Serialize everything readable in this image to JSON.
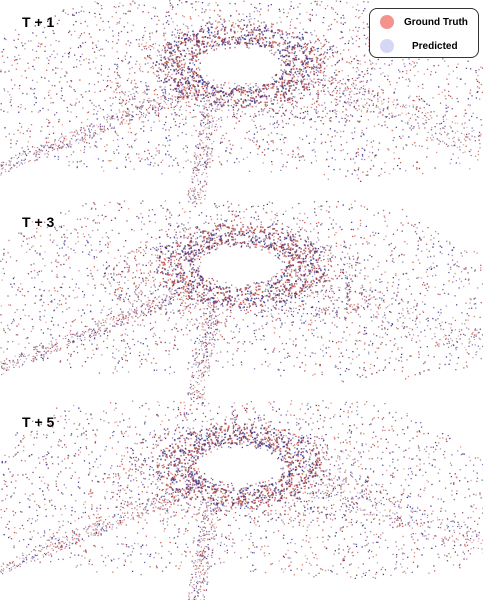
{
  "panels": [
    {
      "label": "T + 1"
    },
    {
      "label": "T + 3"
    },
    {
      "label": "T + 5"
    }
  ],
  "legend": {
    "items": [
      {
        "label": "Ground Truth",
        "color": "#f4938c"
      },
      {
        "label": "Predicted",
        "color": "#d6d6f5"
      }
    ]
  },
  "colors": {
    "ground_truth_points": "#c44a3a",
    "predicted_points": "#2e2a8a",
    "overlap_points": "#7a2f4e"
  }
}
